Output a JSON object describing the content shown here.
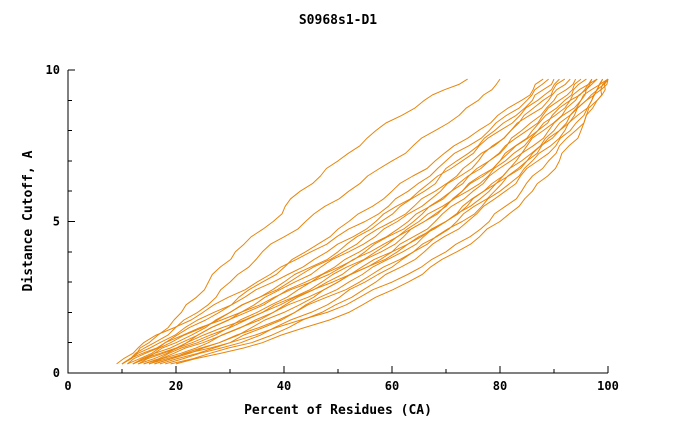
{
  "chart_data": {
    "type": "line",
    "title": "S0968s1-D1",
    "xlabel": "Percent of Residues (CA)",
    "ylabel": "Distance Cutoff, A",
    "xlim": [
      0,
      100
    ],
    "ylim": [
      0,
      10
    ],
    "xticks": [
      0,
      20,
      40,
      60,
      80,
      100
    ],
    "xticks_minor": [
      10,
      30,
      50,
      70,
      90
    ],
    "yticks": [
      0,
      5,
      10
    ],
    "yticks_minor": [
      1,
      2,
      3,
      4,
      6,
      7,
      8,
      9
    ],
    "line_color": "#e8860d",
    "axis_color": "#000000",
    "legend": "none",
    "grid": false,
    "y_samples": [
      0.3,
      1,
      2,
      3,
      4,
      5,
      6,
      7,
      8,
      9,
      9.7
    ],
    "series": [
      [
        10,
        15,
        21,
        26,
        31,
        38,
        43,
        50,
        57,
        66,
        74
      ],
      [
        10,
        16,
        24,
        30,
        36,
        44,
        52,
        60,
        68,
        76,
        80
      ],
      [
        11,
        18,
        28,
        36,
        44,
        52,
        60,
        68,
        76,
        84,
        88
      ],
      [
        9,
        14,
        25,
        35,
        45,
        55,
        63,
        70,
        78,
        85,
        89
      ],
      [
        12,
        20,
        30,
        40,
        50,
        58,
        66,
        72,
        79,
        86,
        90
      ],
      [
        10,
        17,
        27,
        38,
        48,
        57,
        65,
        73,
        80,
        87,
        91
      ],
      [
        13,
        22,
        32,
        42,
        52,
        61,
        69,
        76,
        82,
        88,
        92
      ],
      [
        11,
        19,
        30,
        41,
        51,
        60,
        68,
        75,
        82,
        89,
        93
      ],
      [
        14,
        24,
        35,
        45,
        55,
        64,
        71,
        78,
        84,
        90,
        94
      ],
      [
        12,
        21,
        33,
        44,
        54,
        63,
        71,
        78,
        85,
        91,
        95
      ],
      [
        15,
        26,
        38,
        48,
        58,
        66,
        73,
        80,
        86,
        92,
        96
      ],
      [
        13,
        23,
        36,
        47,
        57,
        66,
        74,
        81,
        87,
        93,
        97
      ],
      [
        16,
        28,
        40,
        50,
        60,
        68,
        75,
        82,
        88,
        94,
        97
      ],
      [
        10,
        18,
        32,
        45,
        56,
        65,
        73,
        80,
        87,
        93,
        98
      ],
      [
        17,
        30,
        42,
        52,
        62,
        70,
        77,
        83,
        89,
        95,
        98
      ],
      [
        14,
        25,
        38,
        50,
        61,
        70,
        77,
        84,
        90,
        95,
        99
      ],
      [
        18,
        32,
        45,
        55,
        64,
        72,
        79,
        85,
        91,
        96,
        99
      ],
      [
        12,
        22,
        36,
        49,
        60,
        70,
        78,
        85,
        91,
        96,
        100
      ],
      [
        16,
        28,
        42,
        54,
        64,
        73,
        80,
        86,
        92,
        97,
        100
      ],
      [
        19,
        34,
        47,
        57,
        66,
        74,
        81,
        87,
        93,
        97,
        100
      ],
      [
        15,
        30,
        48,
        60,
        70,
        78,
        84,
        89,
        94,
        98,
        100
      ],
      [
        20,
        36,
        52,
        63,
        72,
        80,
        86,
        91,
        95,
        98,
        100
      ]
    ]
  }
}
